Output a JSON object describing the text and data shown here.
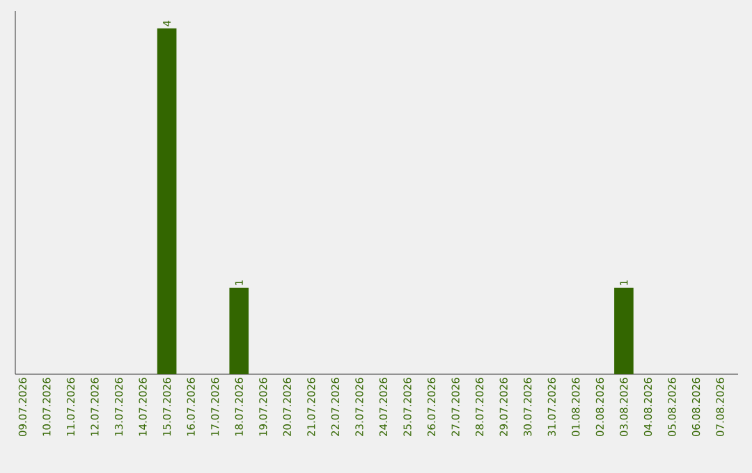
{
  "chart_data": {
    "type": "bar",
    "categories": [
      "09.07.2026",
      "10.07.2026",
      "11.07.2026",
      "12.07.2026",
      "13.07.2026",
      "14.07.2026",
      "15.07.2026",
      "16.07.2026",
      "17.07.2026",
      "18.07.2026",
      "19.07.2026",
      "20.07.2026",
      "21.07.2026",
      "22.07.2026",
      "23.07.2026",
      "24.07.2026",
      "25.07.2026",
      "26.07.2026",
      "27.07.2026",
      "28.07.2026",
      "29.07.2026",
      "30.07.2026",
      "31.07.2026",
      "01.08.2026",
      "02.08.2026",
      "03.08.2026",
      "04.08.2026",
      "05.08.2026",
      "06.08.2026",
      "07.08.2026"
    ],
    "values": [
      0,
      0,
      0,
      0,
      0,
      0,
      4,
      0,
      0,
      1,
      0,
      0,
      0,
      0,
      0,
      0,
      0,
      0,
      0,
      0,
      0,
      0,
      0,
      0,
      0,
      1,
      0,
      0,
      0,
      0
    ],
    "value_labels": [
      null,
      null,
      null,
      null,
      null,
      null,
      "4",
      null,
      null,
      "1",
      null,
      null,
      null,
      null,
      null,
      null,
      null,
      null,
      null,
      null,
      null,
      null,
      null,
      null,
      null,
      "1",
      null,
      null,
      null,
      null
    ],
    "color": "#336600"
  }
}
